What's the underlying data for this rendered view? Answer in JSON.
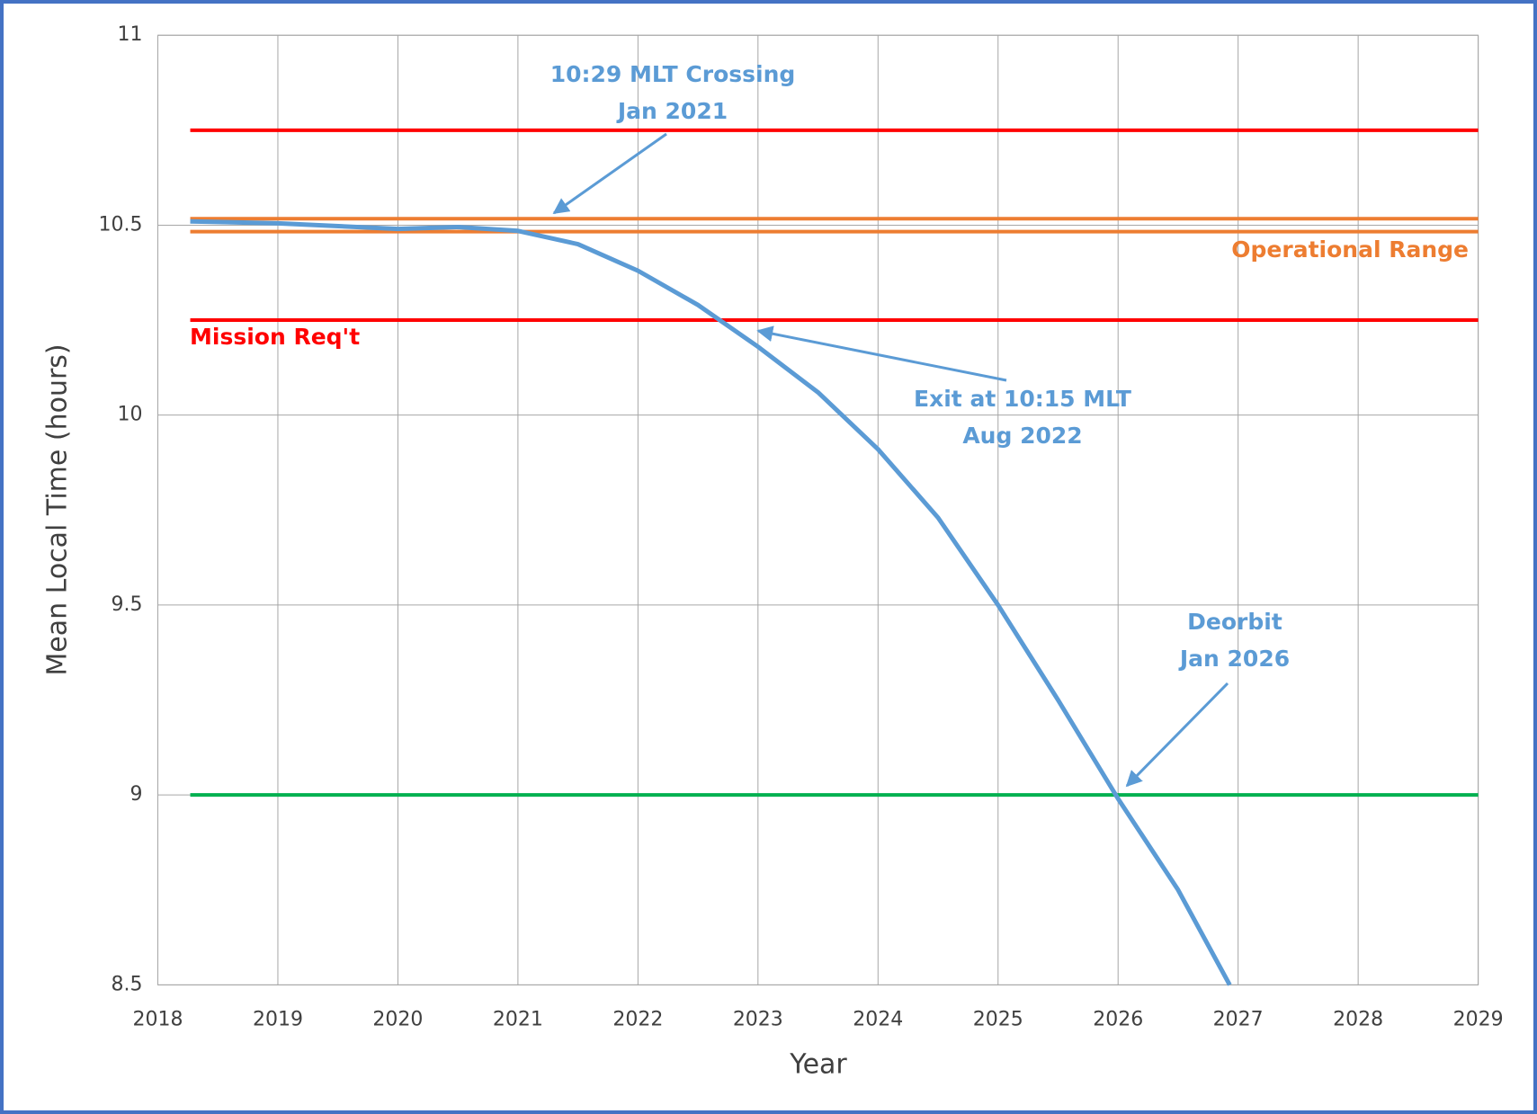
{
  "chart_data": {
    "type": "line",
    "xlabel": "Year",
    "ylabel": "Mean Local Time (hours)",
    "xlim": [
      2018,
      2029
    ],
    "xticks": [
      2018,
      2019,
      2020,
      2021,
      2022,
      2023,
      2024,
      2025,
      2026,
      2027,
      2028,
      2029
    ],
    "ylim": [
      8.5,
      11
    ],
    "yticks": [
      8.5,
      9,
      9.5,
      10,
      10.5,
      11
    ],
    "grid": true,
    "series": [
      {
        "color": "#5b9bd5",
        "x": [
          2018.27,
          2019,
          2020,
          2020.5,
          2021,
          2021.5,
          2022,
          2022.5,
          2023,
          2023.5,
          2024,
          2024.5,
          2025,
          2025.5,
          2026,
          2026.5,
          2026.93
        ],
        "values": [
          10.51,
          10.505,
          10.49,
          10.495,
          10.485,
          10.45,
          10.38,
          10.29,
          10.18,
          10.06,
          9.91,
          9.73,
          9.5,
          9.25,
          8.99,
          8.75,
          8.5
        ]
      },
      {
        "color": "#ff0000",
        "x": [
          2018.27,
          2029
        ],
        "values": [
          10.75,
          10.75
        ]
      },
      {
        "color": "#ed7d31",
        "x": [
          2018.27,
          2029
        ],
        "values": [
          10.517,
          10.517
        ]
      },
      {
        "color": "#ed7d31",
        "x": [
          2018.27,
          2029
        ],
        "values": [
          10.483,
          10.483
        ]
      },
      {
        "color": "#ff0000",
        "x": [
          2018.27,
          2029
        ],
        "values": [
          10.25,
          10.25
        ]
      },
      {
        "color": "#00b050",
        "x": [
          2018.27,
          2029
        ],
        "values": [
          9,
          9
        ]
      }
    ],
    "annotations": [
      {
        "lines": [
          "10:29 MLT Crossing",
          "Jan 2021"
        ],
        "color": "#5b9bd5"
      },
      {
        "lines": [
          "Operational Range"
        ],
        "color": "#ed7d31"
      },
      {
        "lines": [
          "Mission Req't"
        ],
        "color": "#ff0000"
      },
      {
        "lines": [
          "Exit at 10:15 MLT",
          "Aug 2022"
        ],
        "color": "#5b9bd5"
      },
      {
        "lines": [
          "Deorbit",
          "Jan 2026"
        ],
        "color": "#5b9bd5"
      }
    ]
  }
}
